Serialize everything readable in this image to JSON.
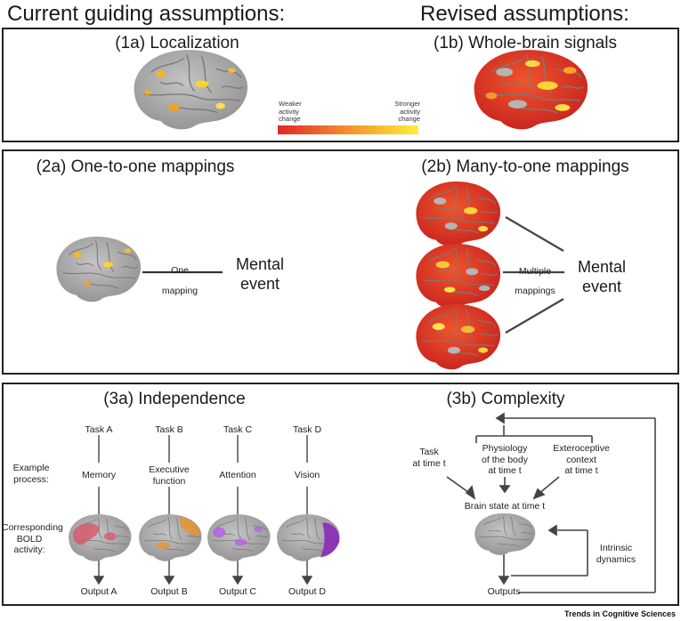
{
  "headers": {
    "left": "Current guiding assumptions:",
    "right": "Revised assumptions:"
  },
  "panel1": {
    "title_a": "(1a) Localization",
    "title_b": "(1b) Whole-brain signals",
    "legend": {
      "weaker": "Weaker\nactivity\nchange",
      "stronger": "Stronger\nactivity\nchange",
      "color_low": "#e0262a",
      "color_high": "#ffef3a"
    }
  },
  "panel2": {
    "title_a": "(2a) One-to-one mappings",
    "title_b": "(2b) Many-to-one mappings",
    "one_mapping": "One\nmapping",
    "multiple_mappings": "Multiple\nmappings",
    "mental_event": "Mental\nevent"
  },
  "panel3": {
    "title_a": "(3a) Independence",
    "title_b": "(3b) Complexity",
    "example_process": "Example\nprocess:",
    "bold_activity": "Corresponding\nBOLD\nactivity:",
    "columns": [
      {
        "task": "Task A",
        "process": "Memory",
        "output": "Output A",
        "color": "#d9566a"
      },
      {
        "task": "Task B",
        "process": "Executive\nfunction",
        "output": "Output B",
        "color": "#e8952b"
      },
      {
        "task": "Task C",
        "process": "Attention",
        "output": "Output C",
        "color": "#a64de0"
      },
      {
        "task": "Task D",
        "process": "Vision",
        "output": "Output D",
        "color": "#8a2bb8"
      }
    ],
    "complexity": {
      "task": "Task\nat time t",
      "physiology": "Physiology\nof the body\nat time t",
      "exteroceptive": "Exteroceptive\ncontext\nat time t",
      "brain_state": "Brain state at time t",
      "intrinsic": "Intrinsic\ndynamics",
      "outputs": "Outputs"
    }
  },
  "footer": "Trends in Cognitive Sciences"
}
